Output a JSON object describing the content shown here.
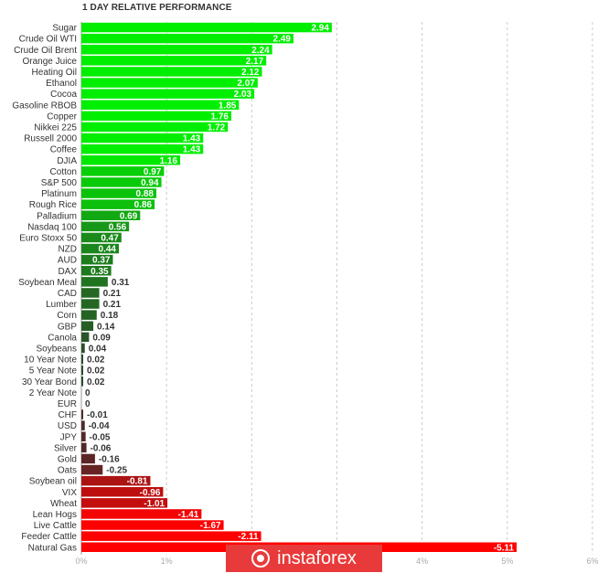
{
  "title": "1 DAY RELATIVE PERFORMANCE",
  "watermark": "instaforex",
  "chart_data": {
    "type": "bar",
    "orientation": "horizontal",
    "title": "1 DAY RELATIVE PERFORMANCE",
    "xlim": [
      0,
      6
    ],
    "x_ticks": [
      "0%",
      "1%",
      "2%",
      "3%",
      "4%",
      "5%",
      "6%"
    ],
    "grid": true,
    "categories": [
      "Sugar",
      "Crude Oil WTI",
      "Crude Oil Brent",
      "Orange Juice",
      "Heating Oil",
      "Ethanol",
      "Cocoa",
      "Gasoline RBOB",
      "Copper",
      "Nikkei 225",
      "Russell 2000",
      "Coffee",
      "DJIA",
      "Cotton",
      "S&P 500",
      "Platinum",
      "Rough Rice",
      "Palladium",
      "Nasdaq 100",
      "Euro Stoxx 50",
      "NZD",
      "AUD",
      "DAX",
      "Soybean Meal",
      "CAD",
      "Lumber",
      "Corn",
      "GBP",
      "Canola",
      "Soybeans",
      "10 Year Note",
      "5 Year Note",
      "30 Year Bond",
      "2 Year Note",
      "EUR",
      "CHF",
      "USD",
      "JPY",
      "Silver",
      "Gold",
      "Oats",
      "Soybean oil",
      "VIX",
      "Wheat",
      "Lean Hogs",
      "Live Cattle",
      "Feeder Cattle",
      "Natural Gas"
    ],
    "values": [
      2.94,
      2.49,
      2.24,
      2.17,
      2.12,
      2.07,
      2.03,
      1.85,
      1.76,
      1.72,
      1.43,
      1.43,
      1.16,
      0.97,
      0.94,
      0.88,
      0.86,
      0.69,
      0.56,
      0.47,
      0.44,
      0.37,
      0.35,
      0.31,
      0.21,
      0.21,
      0.18,
      0.14,
      0.09,
      0.04,
      0.02,
      0.02,
      0.02,
      0,
      0,
      -0.01,
      -0.04,
      -0.05,
      -0.06,
      -0.16,
      -0.25,
      -0.81,
      -0.96,
      -1.01,
      -1.41,
      -1.67,
      -2.11,
      -5.11
    ],
    "value_labels": [
      "2.94",
      "2.49",
      "2.24",
      "2.17",
      "2.12",
      "2.07",
      "2.03",
      "1.85",
      "1.76",
      "1.72",
      "1.43",
      "1.43",
      "1.16",
      "0.97",
      "0.94",
      "0.88",
      "0.86",
      "0.69",
      "0.56",
      "0.47",
      "0.44",
      "0.37",
      "0.35",
      "0.31",
      "0.21",
      "0.21",
      "0.18",
      "0.14",
      "0.09",
      "0.04",
      "0.02",
      "0.02",
      "0.02",
      "0",
      "0",
      "-0.01",
      "-0.04",
      "-0.05",
      "-0.06",
      "-0.16",
      "-0.25",
      "-0.81",
      "-0.96",
      "-1.01",
      "-1.41",
      "-1.67",
      "-2.11",
      "-5.11"
    ],
    "colors": {
      "positive_strong": "#00ee00",
      "positive_weak": "#2b4a2b",
      "negative_weak": "#4a2b2b",
      "negative_strong": "#ff0000",
      "grid": "#cccccc",
      "label": "#333333",
      "axis": "#999999"
    }
  }
}
